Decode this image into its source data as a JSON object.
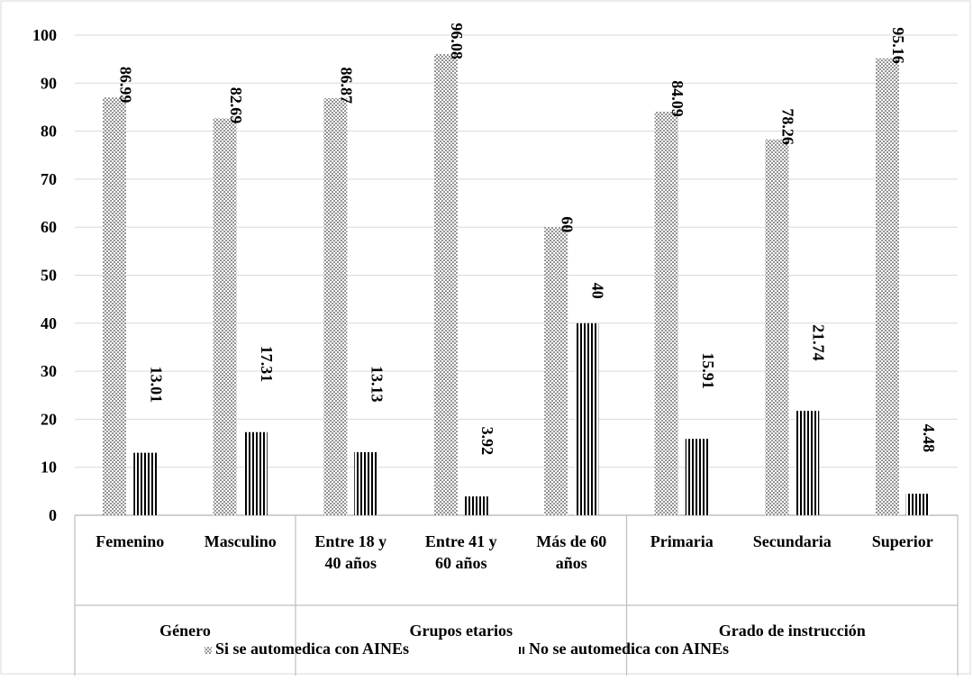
{
  "chart_data": {
    "type": "bar",
    "title": "",
    "xlabel": "",
    "ylabel": "",
    "ylim": [
      0,
      100
    ],
    "yticks": [
      0,
      10,
      20,
      30,
      40,
      50,
      60,
      70,
      80,
      90,
      100
    ],
    "grid": true,
    "legend_position": "bottom",
    "categories": [
      [
        "Femenino"
      ],
      [
        "Masculino"
      ],
      [
        "Entre 18 y",
        "40 años"
      ],
      [
        "Entre 41 y",
        "60 años"
      ],
      [
        "Más de 60",
        "años"
      ],
      [
        "Primaria"
      ],
      [
        "Secundaria"
      ],
      [
        "Superior"
      ]
    ],
    "groups": [
      {
        "label": "Género",
        "start": 0,
        "count": 2
      },
      {
        "label": "Grupos etarios",
        "start": 2,
        "count": 3
      },
      {
        "label": "Grado de instrucción",
        "start": 5,
        "count": 3
      }
    ],
    "series": [
      {
        "name": "Si se automedica con AINEs",
        "pattern": "dots",
        "values": [
          86.99,
          82.69,
          86.87,
          96.08,
          60,
          84.09,
          78.26,
          95.16
        ],
        "labels": [
          "86.99",
          "82.69",
          "86.87",
          "96.08",
          "60",
          "84.09",
          "78.26",
          "95.16"
        ]
      },
      {
        "name": "No se automedica con AINEs",
        "pattern": "vlines",
        "values": [
          13.01,
          17.31,
          13.13,
          3.92,
          40,
          15.91,
          21.74,
          4.48
        ],
        "labels": [
          "13.01",
          "17.31",
          "13.13",
          "3.92",
          "40",
          "15.91",
          "21.74",
          "4.48"
        ]
      }
    ],
    "colors": {
      "grid": "#d9d9d9",
      "axis": "#bfbfbf",
      "ink": "#000000",
      "background": "#ffffff"
    }
  }
}
